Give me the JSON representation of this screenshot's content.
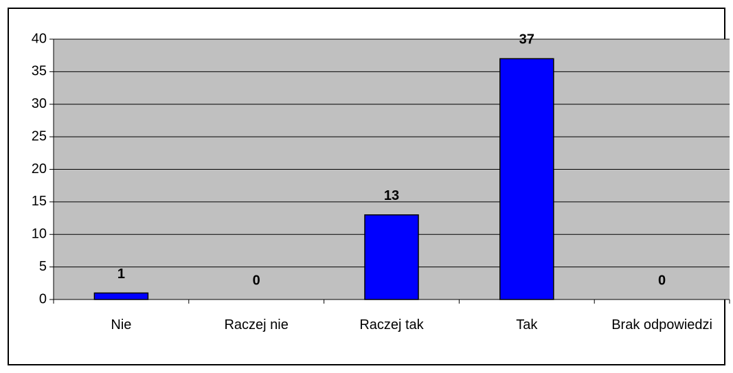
{
  "chart_data": {
    "type": "bar",
    "categories": [
      "Nie",
      "Raczej nie",
      "Raczej tak",
      "Tak",
      "Brak odpowiedzi"
    ],
    "values": [
      1,
      0,
      13,
      37,
      0
    ],
    "color": "#0000ff",
    "ylim": [
      0,
      40
    ],
    "yticks": [
      0,
      5,
      10,
      15,
      20,
      25,
      30,
      35,
      40
    ],
    "grid": true
  }
}
